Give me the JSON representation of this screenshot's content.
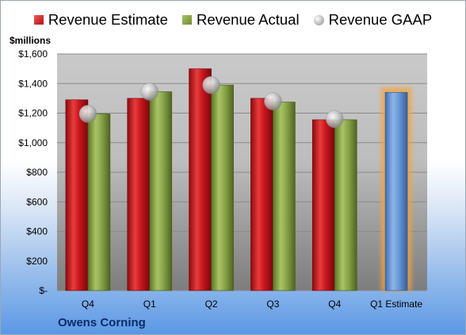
{
  "legend": {
    "estimate": "Revenue Estimate",
    "actual": "Revenue Actual",
    "gaap": "Revenue GAAP"
  },
  "units_label": "$millions",
  "company": "Owens Corning",
  "colors": {
    "estimate": "#c8161d",
    "actual": "#8aa64a",
    "gaap": "#b5b5b5",
    "forecast": "#6b9ad8",
    "forecast_glow": "#f4a340"
  },
  "chart_data": {
    "type": "bar",
    "categories": [
      "Q4",
      "Q1",
      "Q2",
      "Q3",
      "Q4",
      "Q1 Estimate"
    ],
    "series": [
      {
        "name": "Revenue Estimate",
        "values": [
          1290,
          1300,
          1500,
          1300,
          1155,
          null
        ]
      },
      {
        "name": "Revenue Actual",
        "values": [
          1195,
          1345,
          1390,
          1275,
          1155,
          1340
        ]
      },
      {
        "name": "Revenue GAAP",
        "values": [
          1195,
          1345,
          1390,
          1280,
          1160,
          null
        ]
      }
    ],
    "forecast_category": "Q1 Estimate",
    "ylim": [
      0,
      1600
    ],
    "yticks": [
      "$-",
      "$200",
      "$400",
      "$600",
      "$800",
      "$1,000",
      "$1,200",
      "$1,400",
      "$1,600"
    ],
    "grid": true,
    "legend_position": "top"
  }
}
